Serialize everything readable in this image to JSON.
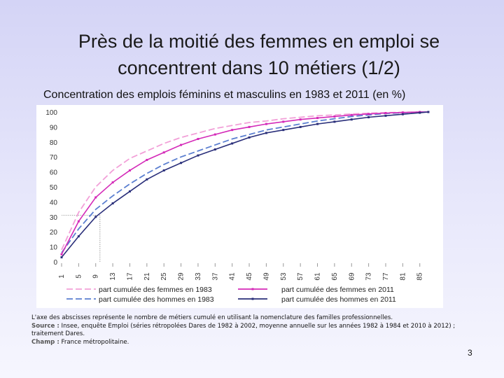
{
  "title": "Près de la moitié des femmes en emploi se concentrent dans 10 métiers (1/2)",
  "chart_data": {
    "type": "line",
    "title": "Concentration des emplois féminins et masculins en 1983 et 2011 (en %)",
    "x": [
      1,
      5,
      9,
      13,
      17,
      21,
      25,
      29,
      33,
      37,
      41,
      45,
      49,
      53,
      57,
      61,
      65,
      69,
      73,
      77,
      81,
      85,
      87
    ],
    "series": [
      {
        "name": "part cumulée des femmes en 1983",
        "color": "#f2a0d8",
        "style": "dashed",
        "values": [
          8,
          33,
          50,
          61,
          69,
          74,
          79,
          83,
          86,
          89,
          91,
          93,
          94,
          95.5,
          96.5,
          97.5,
          98,
          98.7,
          99.2,
          99.6,
          99.8,
          100,
          100
        ]
      },
      {
        "name": "part cumulée des hommes en 1983",
        "color": "#5b7fd0",
        "style": "dashed",
        "values": [
          6,
          22,
          35,
          44,
          52,
          59,
          65,
          70,
          74,
          78,
          82,
          85,
          88,
          90,
          92,
          94,
          95.5,
          97,
          98,
          99,
          99.5,
          100,
          100
        ]
      },
      {
        "name": "part cumulée des femmes en 2011",
        "color": "#d42ab8",
        "style": "solid",
        "values": [
          5,
          27,
          43,
          53,
          61,
          68,
          73,
          78,
          82,
          85,
          88,
          90,
          92,
          93.5,
          95,
          96,
          97,
          98,
          98.7,
          99.3,
          99.7,
          100,
          100
        ]
      },
      {
        "name": "part cumulée des hommes en 2011",
        "color": "#2a2f7a",
        "style": "solid",
        "values": [
          3,
          17,
          30,
          39,
          47,
          55,
          61,
          66,
          71,
          75,
          79,
          83,
          86,
          88,
          90,
          92,
          93.5,
          95,
          96.5,
          97.5,
          98.5,
          99.5,
          100
        ]
      }
    ],
    "reference_point": {
      "x": 10,
      "y": 31
    },
    "xlim": [
      1,
      88
    ],
    "xticks": [
      1,
      5,
      9,
      13,
      17,
      21,
      25,
      29,
      33,
      37,
      41,
      45,
      49,
      53,
      57,
      61,
      65,
      69,
      73,
      77,
      81,
      85
    ],
    "ylim": [
      0,
      100
    ],
    "yticks": [
      0,
      10,
      20,
      30,
      40,
      50,
      60,
      70,
      80,
      90,
      100
    ],
    "grid": false
  },
  "notes": {
    "axis_note": "L'axe des abscisses représente le nombre de métiers cumulé en utilisant la nomenclature des familles professionnelles.",
    "source_label": "Source :",
    "source": "Insee, enquête Emploi (séries rétropolées Dares de 1982 à 2002, moyenne annuelle sur les années 1982 à 1984 et 2010 à 2012) ; traitement Dares.",
    "scope_label": "Champ :",
    "scope": "France métropolitaine."
  },
  "page_number": "3"
}
